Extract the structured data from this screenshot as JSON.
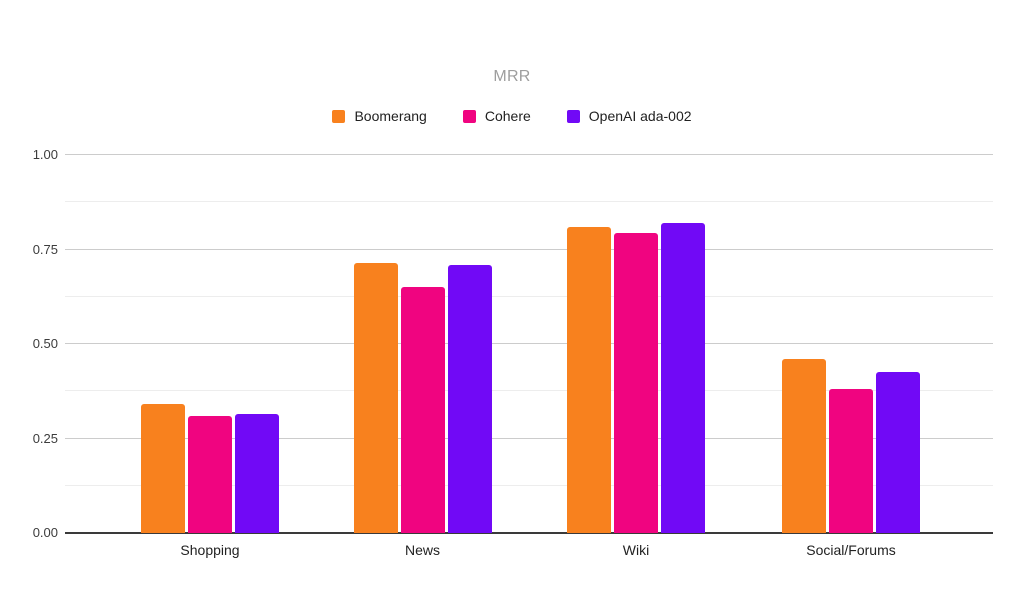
{
  "chart_data": {
    "type": "bar",
    "title": "MRR",
    "categories": [
      "Shopping",
      "News",
      "Wiki",
      "Social/Forums"
    ],
    "series": [
      {
        "name": "Boomerang",
        "color": "#F8811E",
        "values": [
          0.34,
          0.715,
          0.81,
          0.46
        ]
      },
      {
        "name": "Cohere",
        "color": "#F00480",
        "values": [
          0.31,
          0.65,
          0.795,
          0.38
        ]
      },
      {
        "name": "OpenAI ada-002",
        "color": "#7109F6",
        "values": [
          0.315,
          0.71,
          0.82,
          0.425
        ]
      }
    ],
    "ylim": [
      0,
      1
    ],
    "yticks": {
      "values": [
        0,
        0.25,
        0.5,
        0.75,
        1
      ],
      "labels": [
        "0.00",
        "0.25",
        "0.50",
        "0.75",
        "1.00"
      ]
    },
    "minor_ticks": [
      0.125,
      0.375,
      0.625,
      0.875
    ],
    "legend_position": "top",
    "grid": "on",
    "colors": {
      "title_text": "#9e9e9e",
      "axis_text": "#3c3c3c",
      "major_gridline": "#cccccc",
      "minor_gridline": "#ededed",
      "baseline": "#3a3a3a",
      "background": "#ffffff"
    }
  }
}
